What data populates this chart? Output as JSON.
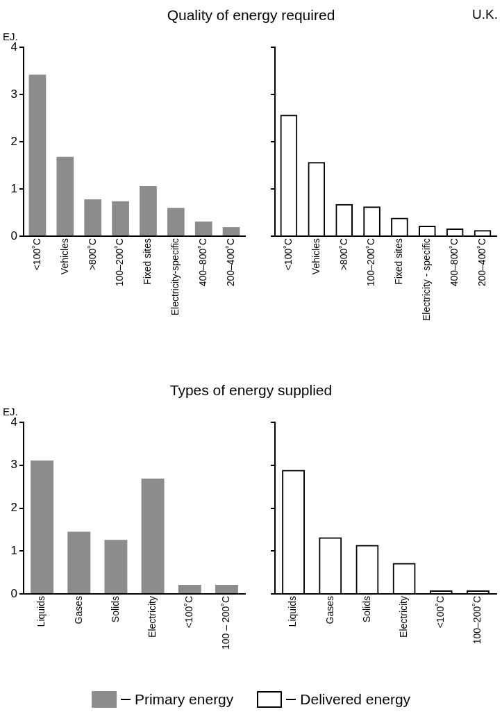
{
  "chart_data": [
    {
      "type": "bar",
      "title": "Quality of energy required",
      "ylabel": "EJ.",
      "categories": [
        "<100˚C",
        "Vehicles",
        ">800˚C",
        "100–200˚C",
        "Fixed sites",
        "Electricity-specific",
        "400–800˚C",
        "200–400˚C"
      ],
      "series": [
        {
          "color": "#8c8c8c",
          "values": [
            3.42,
            1.68,
            0.78,
            0.74,
            1.06,
            0.6,
            0.31,
            0.19
          ]
        }
      ],
      "ylim": [
        0,
        4
      ],
      "yticks": [
        0,
        1,
        2,
        3,
        4
      ]
    },
    {
      "type": "bar",
      "annotations": [
        "U.K."
      ],
      "categories": [
        "<100˚C",
        "Vehicles",
        ">800˚C",
        "100–200˚C",
        "Fixed sites",
        "Electricity - specific",
        "400–800˚C",
        "200–400˚C"
      ],
      "series": [
        {
          "color": "#000000",
          "values": [
            2.57,
            1.57,
            0.68,
            0.63,
            0.39,
            0.22,
            0.16,
            0.13
          ]
        }
      ],
      "ylim": [
        0,
        4
      ],
      "yticks": [
        {
          "value": 0,
          "label": null
        },
        {
          "value": 1,
          "label": null
        },
        {
          "value": 2,
          "label": null
        },
        {
          "value": 3,
          "label": null
        },
        {
          "value": 4,
          "label": null
        }
      ],
      "tick_labels": "x"
    },
    {
      "type": "bar",
      "title": "Types of energy supplied",
      "ylabel": "EJ.",
      "categories": [
        "Liquids",
        "Gases",
        "Solids",
        "Electricity",
        "<100˚C",
        "100 – 200˚C"
      ],
      "series": [
        {
          "name": "Primary energy",
          "color": "#8c8c8c",
          "values": [
            3.11,
            1.45,
            1.26,
            2.69,
            0.21,
            0.21
          ]
        }
      ],
      "ylim": [
        0,
        4
      ],
      "yticks": [
        0,
        1,
        2,
        3,
        4
      ],
      "legend": "bottom"
    },
    {
      "type": "bar",
      "categories": [
        "Liquids",
        "Gases",
        "Solids",
        "Electricity",
        "<100˚C",
        "100–200˚C"
      ],
      "series": [
        {
          "name": "Delivered energy",
          "color": "#000000",
          "values": [
            2.89,
            1.32,
            1.14,
            0.72,
            0.08,
            0.08
          ]
        }
      ],
      "ylim": [
        0,
        4
      ],
      "yticks": [
        {
          "value": 0,
          "label": null
        },
        {
          "value": 1,
          "label": null
        },
        {
          "value": 2,
          "label": null
        },
        {
          "value": 3,
          "label": null
        },
        {
          "value": 4,
          "label": null
        }
      ],
      "tick_labels": "x",
      "legend": "bottom"
    }
  ]
}
